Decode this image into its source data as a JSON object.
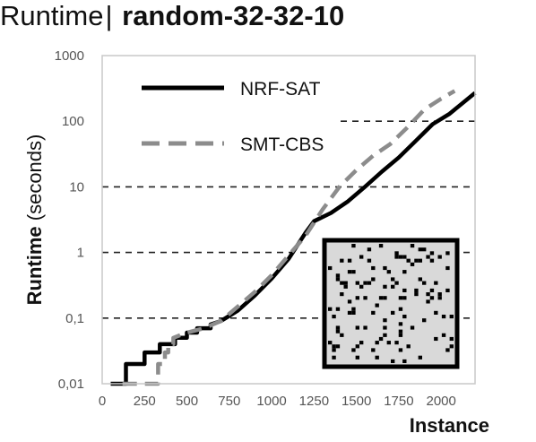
{
  "title": {
    "prefix": "Runtime",
    "separator": "|",
    "name": "random-32-32-10"
  },
  "chart_data": {
    "type": "line",
    "xlabel": "Instance",
    "ylabel_bold": "Runtime",
    "ylabel_rest": " (seconds)",
    "y_scale": "log",
    "xlim": [
      0,
      2200
    ],
    "ylim": [
      0.01,
      1000
    ],
    "x_ticks": [
      0,
      250,
      500,
      750,
      1000,
      1250,
      1500,
      1750,
      2000
    ],
    "x_tick_labels": [
      "0",
      "250",
      "500",
      "750",
      "1000",
      "1250",
      "1500",
      "1750",
      "2000"
    ],
    "y_ticks": [
      0.01,
      0.1,
      1,
      10,
      100,
      1000
    ],
    "y_tick_labels": [
      "0,01",
      "0,1",
      "1",
      "10",
      "100",
      "1000"
    ],
    "grid": "horizontal dashed",
    "legend_position": "top-left",
    "series": [
      {
        "name": "NRF-SAT",
        "color": "#000000",
        "dash": "solid",
        "points": [
          [
            50,
            0.01
          ],
          [
            140,
            0.01
          ],
          [
            140,
            0.02
          ],
          [
            250,
            0.02
          ],
          [
            250,
            0.03
          ],
          [
            340,
            0.03
          ],
          [
            340,
            0.04
          ],
          [
            400,
            0.04
          ],
          [
            430,
            0.04
          ],
          [
            430,
            0.05
          ],
          [
            500,
            0.05
          ],
          [
            500,
            0.06
          ],
          [
            560,
            0.06
          ],
          [
            560,
            0.07
          ],
          [
            640,
            0.07
          ],
          [
            640,
            0.08
          ],
          [
            700,
            0.09
          ],
          [
            800,
            0.13
          ],
          [
            900,
            0.22
          ],
          [
            1000,
            0.4
          ],
          [
            1100,
            0.8
          ],
          [
            1200,
            2.0
          ],
          [
            1250,
            3.0
          ],
          [
            1350,
            4.0
          ],
          [
            1450,
            6.0
          ],
          [
            1550,
            10.0
          ],
          [
            1650,
            17.0
          ],
          [
            1750,
            28.0
          ],
          [
            1850,
            50.0
          ],
          [
            1950,
            90.0
          ],
          [
            2050,
            130.0
          ],
          [
            2200,
            270.0
          ]
        ]
      },
      {
        "name": "SMT-CBS",
        "color": "#8c8c8c",
        "dash": "dashed",
        "points": [
          [
            120,
            0.01
          ],
          [
            330,
            0.01
          ],
          [
            330,
            0.02
          ],
          [
            370,
            0.02
          ],
          [
            370,
            0.03
          ],
          [
            390,
            0.03
          ],
          [
            390,
            0.04
          ],
          [
            420,
            0.04
          ],
          [
            420,
            0.05
          ],
          [
            500,
            0.06
          ],
          [
            600,
            0.07
          ],
          [
            700,
            0.09
          ],
          [
            800,
            0.15
          ],
          [
            900,
            0.25
          ],
          [
            1000,
            0.45
          ],
          [
            1100,
            0.9
          ],
          [
            1200,
            1.8
          ],
          [
            1300,
            4.5
          ],
          [
            1400,
            10.0
          ],
          [
            1500,
            18.0
          ],
          [
            1600,
            30.0
          ],
          [
            1700,
            45.0
          ],
          [
            1800,
            80.0
          ],
          [
            1900,
            150.0
          ],
          [
            2000,
            220.0
          ],
          [
            2080,
            290.0
          ]
        ]
      }
    ],
    "inset": "grid map thumbnail with black obstacle cells"
  }
}
